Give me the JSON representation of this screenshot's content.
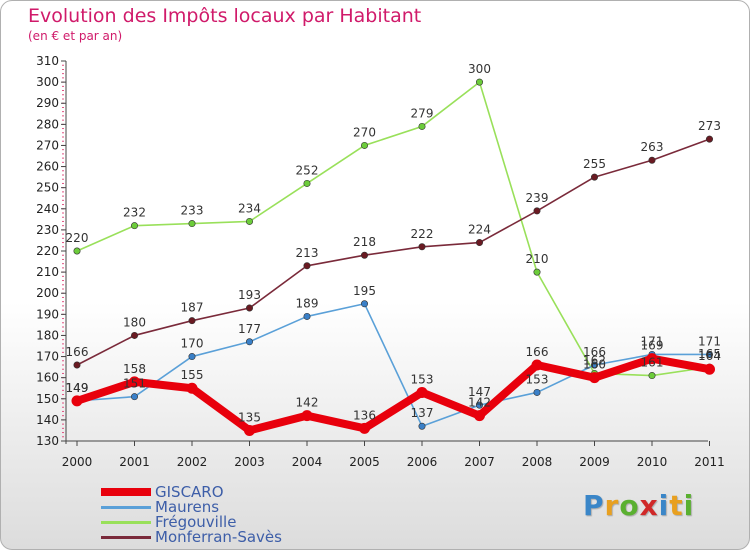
{
  "header": {
    "title": "Evolution des Impôts locaux par Habitant",
    "subtitle": "(en € et par an)"
  },
  "logo": {
    "letters": [
      "P",
      "r",
      "o",
      "x",
      "i",
      "t",
      "i"
    ],
    "colors": [
      "#3a86c8",
      "#e8a020",
      "#5ab030",
      "#d02828",
      "#3a86c8",
      "#e8a020",
      "#5ab030"
    ]
  },
  "chart_data": {
    "type": "line",
    "title": "Evolution des Impôts locaux par Habitant",
    "subtitle": "(en € et par an)",
    "xlabel": "",
    "ylabel": "",
    "categories": [
      "2000",
      "2001",
      "2002",
      "2003",
      "2004",
      "2005",
      "2006",
      "2007",
      "2008",
      "2009",
      "2010",
      "2011"
    ],
    "yticks": [
      "130",
      "140",
      "150",
      "160",
      "170",
      "180",
      "190",
      "200",
      "210",
      "220",
      "230",
      "240",
      "250",
      "260",
      "270",
      "280",
      "290",
      "300",
      "310"
    ],
    "ylim": [
      130,
      310
    ],
    "ytick_step": 10,
    "grid": false,
    "legend_position": "bottom-left",
    "series": [
      {
        "name": "Frégouville",
        "color": "#99e05a",
        "marker": "#6ccc3a",
        "values": [
          220,
          232,
          233,
          234,
          252,
          270,
          279,
          300,
          210,
          162,
          161,
          165
        ],
        "labels": [
          "220",
          "232",
          "233",
          "234",
          "252",
          "270",
          "279",
          "300",
          "210",
          "162",
          "161",
          "165"
        ]
      },
      {
        "name": "Monferran-Savès",
        "color": "#7a2a3a",
        "marker": "#6a1a22",
        "values": [
          166,
          180,
          187,
          193,
          213,
          218,
          222,
          224,
          239,
          255,
          263,
          273
        ],
        "labels": [
          "166",
          "180",
          "187",
          "193",
          "213",
          "218",
          "222",
          "224",
          "239",
          "255",
          "263",
          "273"
        ]
      },
      {
        "name": "Maurens",
        "color": "#5aa0d8",
        "marker": "#3a80c8",
        "values": [
          149,
          151,
          170,
          177,
          189,
          195,
          137,
          147,
          153,
          166,
          171,
          171
        ],
        "labels": [
          "149",
          "151",
          "170",
          "177",
          "189",
          "195",
          "137",
          "147",
          "153",
          "166",
          "171",
          "171"
        ]
      },
      {
        "name": "GISCARO",
        "color": "#e8000c",
        "marker": "#e8000c",
        "values": [
          149,
          158,
          155,
          135,
          142,
          136,
          153,
          142,
          166,
          160,
          169,
          164
        ],
        "labels": [
          "149",
          "158",
          "155",
          "135",
          "142",
          "136",
          "153",
          "142",
          "166",
          "160",
          "169",
          "164"
        ]
      }
    ]
  },
  "legend": {
    "items": [
      {
        "label": "GISCARO",
        "color": "#e8000c",
        "thickness": 8
      },
      {
        "label": "Maurens",
        "color": "#5aa0d8",
        "thickness": 3
      },
      {
        "label": "Frégouville",
        "color": "#99e05a",
        "thickness": 3
      },
      {
        "label": "Monferran-Savès",
        "color": "#7a2a3a",
        "thickness": 3
      }
    ]
  }
}
